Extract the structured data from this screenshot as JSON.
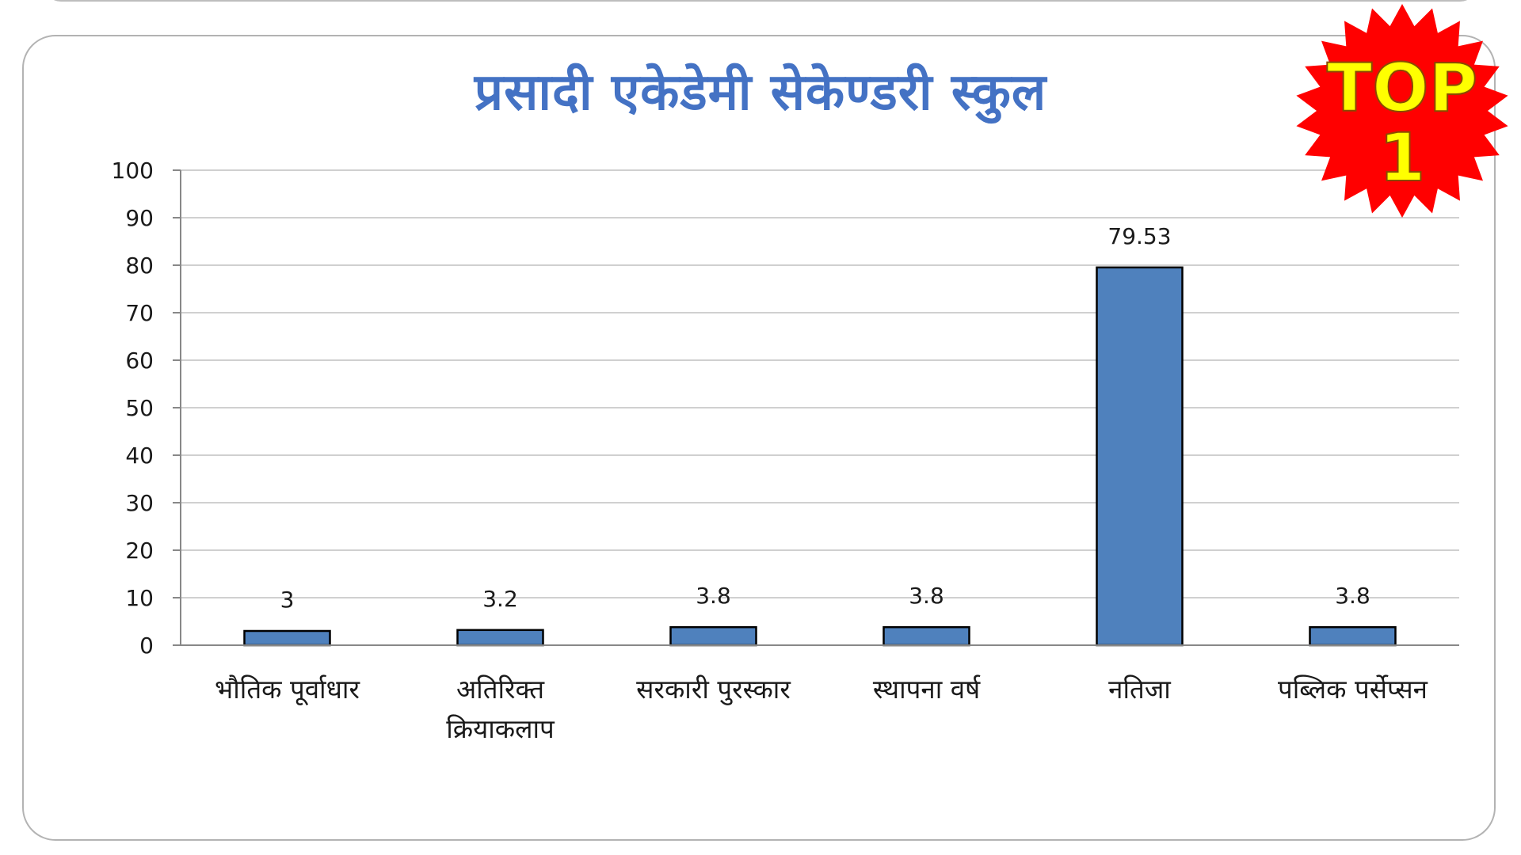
{
  "chart_data": {
    "type": "bar",
    "title": "प्रसादी एकेडेमी सेकेण्डरी स्कुल",
    "categories": [
      [
        "भौतिक पूर्वाधार"
      ],
      [
        "अतिरिक्त",
        "क्रियाकलाप"
      ],
      [
        "सरकारी पुरस्कार"
      ],
      [
        "स्थापना वर्ष"
      ],
      [
        "नतिजा"
      ],
      [
        "पब्लिक पर्सेप्सन"
      ]
    ],
    "values": [
      3,
      3.2,
      3.8,
      3.8,
      79.53,
      3.8
    ],
    "value_labels": [
      "3",
      "3.2",
      "3.8",
      "3.8",
      "79.53",
      "3.8"
    ],
    "ylim": [
      0,
      100
    ],
    "yticks": [
      0,
      10,
      20,
      30,
      40,
      50,
      60,
      70,
      80,
      90,
      100
    ],
    "xlabel": "",
    "ylabel": "",
    "grid": true,
    "bar_color": "#4f81bd",
    "bar_border_color": "#000000"
  },
  "badge": {
    "line1": "TOP",
    "line2": "1",
    "fill_color": "#ff0000",
    "text_color": "#ffff00"
  }
}
